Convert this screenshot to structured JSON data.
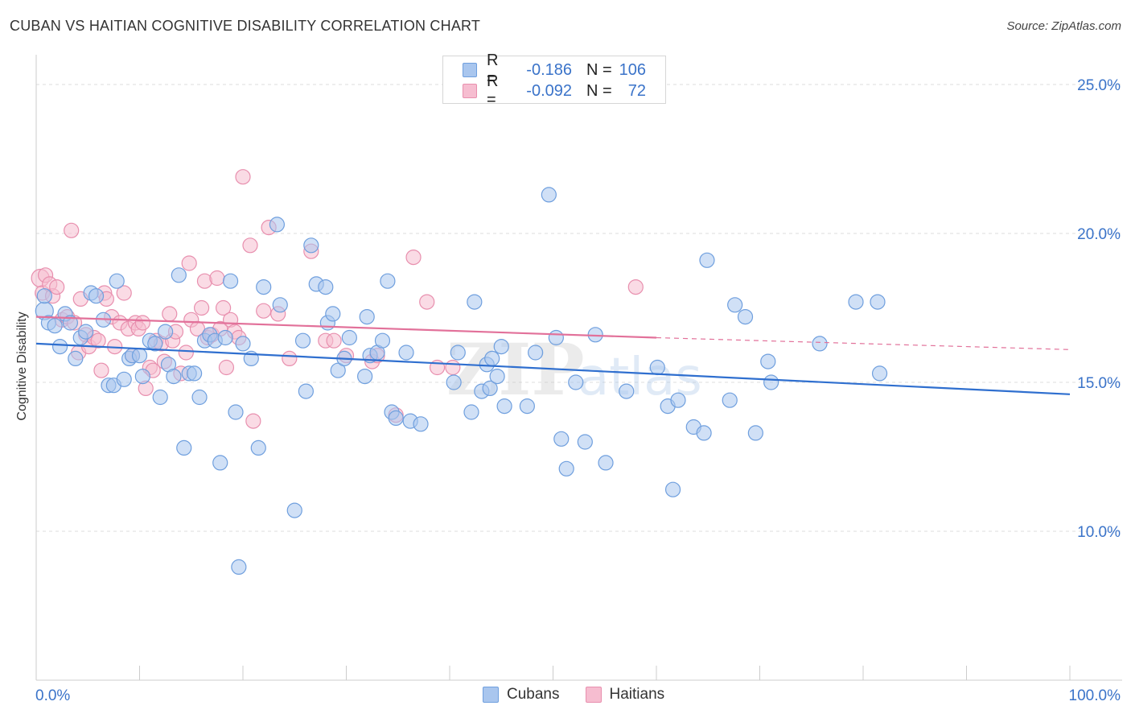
{
  "header": {
    "title": "CUBAN VS HAITIAN COGNITIVE DISABILITY CORRELATION CHART",
    "source": "Source: ZipAtlas.com"
  },
  "legend": {
    "cubans": {
      "r_label": "R =",
      "r_value": "-0.186",
      "n_label": "N =",
      "n_value": "106"
    },
    "haitians": {
      "r_label": "R =",
      "r_value": "-0.092",
      "n_label": "N =",
      "n_value": "72"
    }
  },
  "bottom_legend": {
    "cubans": "Cubans",
    "haitians": "Haitians"
  },
  "colors": {
    "cubans_fill": "#a9c6ee",
    "cubans_stroke": "#6f9fde",
    "cubans_line": "#2f6fcf",
    "haitians_fill": "#f6bdd0",
    "haitians_stroke": "#e88fae",
    "haitians_line": "#e2719a",
    "tick_label": "#3a73c9",
    "grid": "#dddddd"
  },
  "chart_data": {
    "type": "scatter",
    "title": "CUBAN VS HAITIAN COGNITIVE DISABILITY CORRELATION CHART",
    "xlabel": "",
    "ylabel": "Cognitive Disability",
    "xlim": [
      0,
      100
    ],
    "ylim": [
      5.0,
      26.0
    ],
    "x_tick_labels": [
      "0.0%",
      "100.0%"
    ],
    "y_ticks": [
      10.0,
      15.0,
      20.0,
      25.0
    ],
    "y_tick_labels": [
      "10.0%",
      "15.0%",
      "20.0%",
      "25.0%"
    ],
    "grid": "horizontal-dashed",
    "legend_position": "top-center",
    "series": [
      {
        "name": "Cubans",
        "trend": {
          "x": [
            0,
            100
          ],
          "y": [
            16.3,
            14.6
          ]
        },
        "points": [
          [
            0.8,
            17.4
          ],
          [
            0.8,
            17.9
          ],
          [
            1.2,
            17.0
          ],
          [
            1.8,
            16.9
          ],
          [
            2.3,
            16.2
          ],
          [
            2.8,
            17.3
          ],
          [
            3.3,
            17.0
          ],
          [
            3.8,
            15.8
          ],
          [
            4.3,
            16.5
          ],
          [
            4.8,
            16.7
          ],
          [
            5.3,
            18.0
          ],
          [
            5.8,
            17.9
          ],
          [
            6.5,
            17.1
          ],
          [
            7.0,
            14.9
          ],
          [
            7.5,
            14.9
          ],
          [
            7.8,
            18.4
          ],
          [
            8.5,
            15.1
          ],
          [
            9.0,
            15.8
          ],
          [
            9.3,
            15.9
          ],
          [
            10.0,
            15.9
          ],
          [
            10.3,
            15.2
          ],
          [
            11.0,
            16.4
          ],
          [
            11.5,
            16.3
          ],
          [
            12.0,
            14.5
          ],
          [
            12.5,
            16.7
          ],
          [
            12.8,
            15.6
          ],
          [
            13.3,
            15.2
          ],
          [
            13.8,
            18.6
          ],
          [
            14.3,
            12.8
          ],
          [
            14.8,
            15.3
          ],
          [
            15.3,
            15.3
          ],
          [
            15.8,
            14.5
          ],
          [
            16.3,
            16.4
          ],
          [
            16.8,
            16.6
          ],
          [
            17.3,
            16.4
          ],
          [
            17.8,
            12.3
          ],
          [
            18.3,
            16.5
          ],
          [
            18.8,
            18.4
          ],
          [
            19.3,
            14.0
          ],
          [
            19.6,
            8.8
          ],
          [
            20.0,
            16.3
          ],
          [
            20.8,
            15.8
          ],
          [
            21.5,
            12.8
          ],
          [
            22.0,
            18.2
          ],
          [
            23.3,
            20.3
          ],
          [
            23.6,
            17.6
          ],
          [
            25.0,
            10.7
          ],
          [
            25.8,
            16.4
          ],
          [
            26.1,
            14.7
          ],
          [
            26.6,
            19.6
          ],
          [
            27.1,
            18.3
          ],
          [
            28.0,
            18.2
          ],
          [
            28.2,
            17.0
          ],
          [
            28.7,
            17.3
          ],
          [
            29.2,
            15.4
          ],
          [
            29.8,
            15.8
          ],
          [
            30.3,
            16.5
          ],
          [
            31.8,
            15.2
          ],
          [
            32.0,
            17.2
          ],
          [
            32.3,
            15.9
          ],
          [
            33.0,
            16.0
          ],
          [
            33.5,
            16.4
          ],
          [
            34.0,
            18.4
          ],
          [
            34.4,
            14.0
          ],
          [
            34.8,
            13.8
          ],
          [
            35.8,
            16.0
          ],
          [
            36.2,
            13.7
          ],
          [
            37.2,
            13.6
          ],
          [
            40.4,
            15.0
          ],
          [
            40.8,
            16.0
          ],
          [
            42.1,
            14.0
          ],
          [
            42.4,
            17.7
          ],
          [
            43.1,
            14.7
          ],
          [
            43.6,
            15.6
          ],
          [
            43.9,
            14.8
          ],
          [
            44.1,
            15.8
          ],
          [
            44.6,
            15.2
          ],
          [
            45.0,
            16.2
          ],
          [
            45.3,
            14.2
          ],
          [
            47.5,
            14.2
          ],
          [
            48.3,
            16.0
          ],
          [
            49.6,
            21.3
          ],
          [
            50.3,
            16.5
          ],
          [
            50.8,
            13.1
          ],
          [
            51.3,
            12.1
          ],
          [
            52.2,
            15.0
          ],
          [
            53.1,
            13.0
          ],
          [
            54.1,
            16.6
          ],
          [
            55.1,
            12.3
          ],
          [
            57.1,
            14.7
          ],
          [
            60.1,
            15.5
          ],
          [
            61.1,
            14.2
          ],
          [
            61.6,
            11.4
          ],
          [
            62.1,
            14.4
          ],
          [
            63.6,
            13.5
          ],
          [
            64.6,
            13.3
          ],
          [
            64.9,
            19.1
          ],
          [
            67.6,
            17.6
          ],
          [
            67.1,
            14.4
          ],
          [
            68.6,
            17.2
          ],
          [
            69.6,
            13.3
          ],
          [
            70.8,
            15.7
          ],
          [
            71.1,
            15.0
          ],
          [
            75.8,
            16.3
          ],
          [
            79.3,
            17.7
          ],
          [
            81.4,
            17.7
          ],
          [
            81.6,
            15.3
          ]
        ]
      },
      {
        "name": "Haitians",
        "trend": {
          "x": [
            0,
            60
          ],
          "y": [
            17.2,
            16.5
          ]
        },
        "trend_dashed": {
          "x": [
            60,
            100
          ],
          "y": [
            16.5,
            16.1
          ]
        },
        "points": [
          [
            0.4,
            18.5
          ],
          [
            0.6,
            18.0
          ],
          [
            0.9,
            18.6
          ],
          [
            1.3,
            18.3
          ],
          [
            1.6,
            17.9
          ],
          [
            2.0,
            18.2
          ],
          [
            2.5,
            17.1
          ],
          [
            3.0,
            17.2
          ],
          [
            3.4,
            20.1
          ],
          [
            3.7,
            17.0
          ],
          [
            4.1,
            16.0
          ],
          [
            4.3,
            17.8
          ],
          [
            4.8,
            16.6
          ],
          [
            5.1,
            16.2
          ],
          [
            5.6,
            16.5
          ],
          [
            6.0,
            16.4
          ],
          [
            6.3,
            15.4
          ],
          [
            6.6,
            18.0
          ],
          [
            6.8,
            17.8
          ],
          [
            7.3,
            17.2
          ],
          [
            7.6,
            16.2
          ],
          [
            8.1,
            17.0
          ],
          [
            8.5,
            18.0
          ],
          [
            8.9,
            16.8
          ],
          [
            9.3,
            15.9
          ],
          [
            9.6,
            17.0
          ],
          [
            9.9,
            16.8
          ],
          [
            10.3,
            17.0
          ],
          [
            10.6,
            14.8
          ],
          [
            11.0,
            15.5
          ],
          [
            11.3,
            15.4
          ],
          [
            11.6,
            16.4
          ],
          [
            12.1,
            16.3
          ],
          [
            12.4,
            15.7
          ],
          [
            12.9,
            17.3
          ],
          [
            13.2,
            16.4
          ],
          [
            13.5,
            16.7
          ],
          [
            14.0,
            15.3
          ],
          [
            14.5,
            16.0
          ],
          [
            14.8,
            19.0
          ],
          [
            15.0,
            17.1
          ],
          [
            15.6,
            16.8
          ],
          [
            16.0,
            17.5
          ],
          [
            16.3,
            18.4
          ],
          [
            16.6,
            16.5
          ],
          [
            17.0,
            16.6
          ],
          [
            17.5,
            18.5
          ],
          [
            17.8,
            16.8
          ],
          [
            18.1,
            17.5
          ],
          [
            18.4,
            15.5
          ],
          [
            18.8,
            17.1
          ],
          [
            19.2,
            16.7
          ],
          [
            19.6,
            16.5
          ],
          [
            20.0,
            21.9
          ],
          [
            20.7,
            19.6
          ],
          [
            21.0,
            13.7
          ],
          [
            22.0,
            17.4
          ],
          [
            22.5,
            20.2
          ],
          [
            23.4,
            17.3
          ],
          [
            24.5,
            15.8
          ],
          [
            26.6,
            19.4
          ],
          [
            28.0,
            16.4
          ],
          [
            28.8,
            16.4
          ],
          [
            30.0,
            15.9
          ],
          [
            32.5,
            15.7
          ],
          [
            33.0,
            15.9
          ],
          [
            34.8,
            13.9
          ],
          [
            36.5,
            19.2
          ],
          [
            37.8,
            17.7
          ],
          [
            38.8,
            15.5
          ],
          [
            40.3,
            15.5
          ],
          [
            58.0,
            18.2
          ]
        ]
      }
    ]
  }
}
